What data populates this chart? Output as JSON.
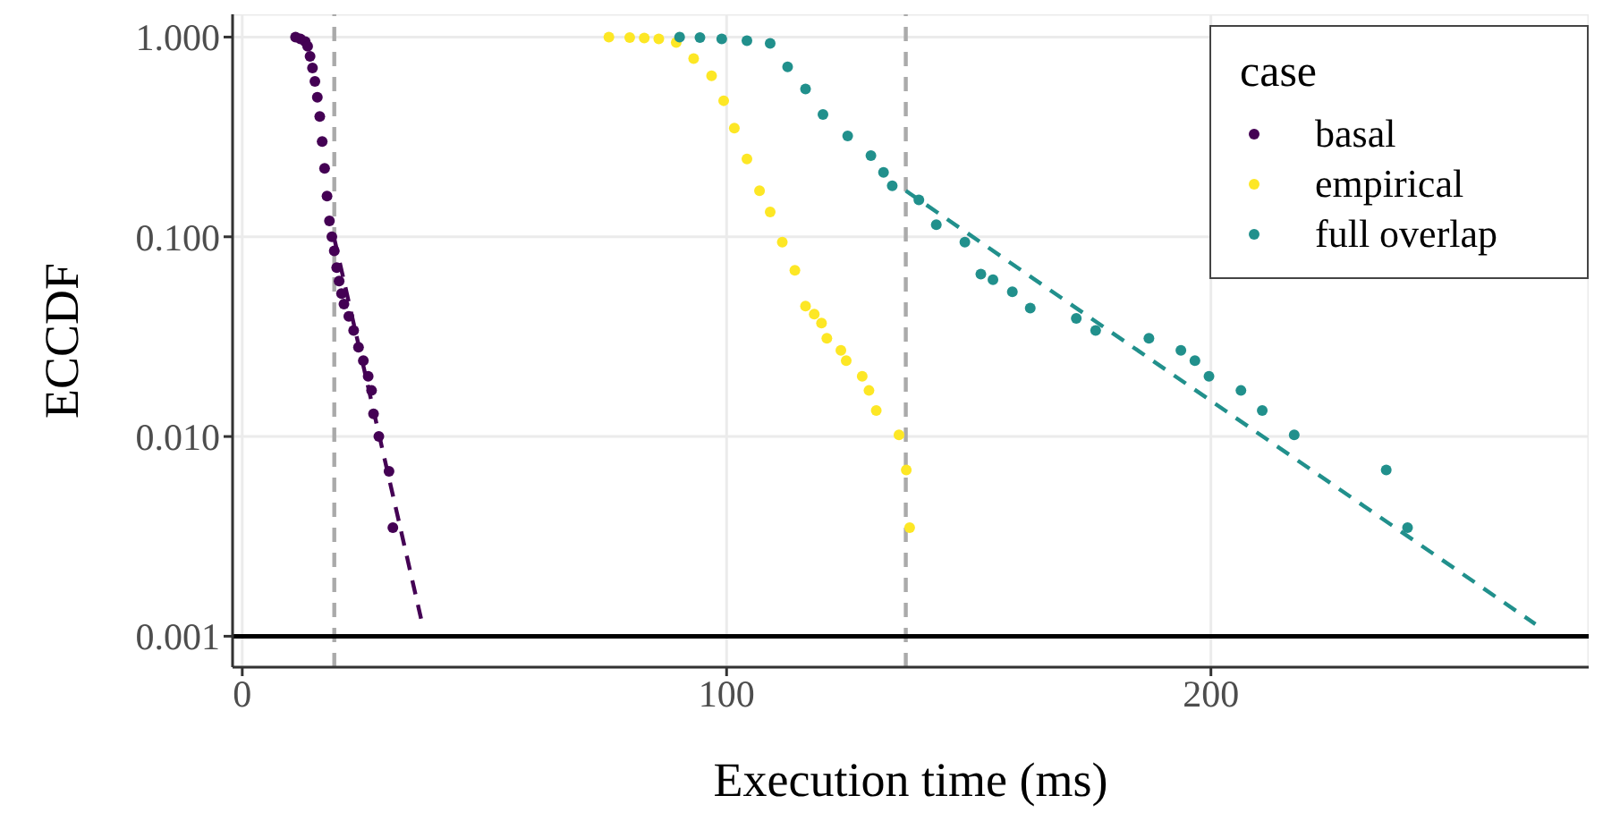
{
  "chart_data": {
    "type": "scatter",
    "xlabel": "Execution time (ms)",
    "ylabel": "ECCDF",
    "legend_title": "case",
    "xlim": [
      -2,
      278
    ],
    "xticks": [
      0,
      100,
      200
    ],
    "ylim": [
      0.0007,
      1.3
    ],
    "yticks": [
      {
        "value": 0.001,
        "label": "0.001"
      },
      {
        "value": 0.01,
        "label": "0.010"
      },
      {
        "value": 0.1,
        "label": "0.100"
      },
      {
        "value": 1,
        "label": "1.000"
      }
    ],
    "log": "y",
    "grid": true,
    "legend": "top right",
    "marker": "circle",
    "series": [
      {
        "name": "basal",
        "color": "#440154",
        "x": [
          11,
          12,
          13,
          13.5,
          14,
          14.5,
          15,
          15.5,
          16,
          16.5,
          17,
          17.5,
          18,
          18.5,
          19,
          19.5,
          20,
          20.5,
          21,
          22,
          23,
          24,
          25,
          26,
          26.7,
          27.1,
          28.2,
          30.3,
          31.1
        ],
        "values": [
          1.0,
          0.98,
          0.95,
          0.9,
          0.8,
          0.7,
          0.6,
          0.5,
          0.4,
          0.3,
          0.22,
          0.16,
          0.12,
          0.1,
          0.085,
          0.07,
          0.06,
          0.052,
          0.046,
          0.04,
          0.034,
          0.028,
          0.024,
          0.02,
          0.017,
          0.013,
          0.01,
          0.0067,
          0.0035
        ]
      },
      {
        "name": "empirical",
        "color": "#fde725",
        "x": [
          75.7,
          80,
          83,
          86,
          89.6,
          93.2,
          96.9,
          99.4,
          101.6,
          104.2,
          106.8,
          109,
          111.5,
          114.1,
          116.3,
          118.1,
          119.6,
          120.7,
          123.6,
          124.7,
          128,
          129.4,
          130.9,
          135.6,
          137.1,
          137.8
        ],
        "values": [
          1.0,
          0.995,
          0.99,
          0.98,
          0.94,
          0.78,
          0.64,
          0.48,
          0.35,
          0.245,
          0.17,
          0.133,
          0.094,
          0.068,
          0.045,
          0.041,
          0.037,
          0.031,
          0.027,
          0.024,
          0.02,
          0.017,
          0.0135,
          0.0102,
          0.0068,
          0.0035
        ]
      },
      {
        "name": "full overlap",
        "color": "#21908c",
        "x": [
          90.3,
          94.5,
          99,
          104.2,
          109,
          112.6,
          116.3,
          119.9,
          125,
          129.8,
          132.4,
          134.2,
          139.7,
          143.3,
          149.2,
          152.5,
          155,
          159,
          162.7,
          172.2,
          176.2,
          187.2,
          193.8,
          196.7,
          199.6,
          206.2,
          210.6,
          217.2,
          236.2,
          240.6
        ],
        "values": [
          1.0,
          0.995,
          0.98,
          0.96,
          0.93,
          0.71,
          0.55,
          0.41,
          0.32,
          0.255,
          0.21,
          0.18,
          0.153,
          0.115,
          0.094,
          0.065,
          0.061,
          0.053,
          0.044,
          0.039,
          0.034,
          0.031,
          0.027,
          0.024,
          0.02,
          0.017,
          0.0135,
          0.0102,
          0.0068,
          0.0035
        ]
      },
      {
        "type": "line",
        "color": "#440154",
        "line_style": "dashed",
        "marker": "none",
        "x": [
          19,
          37
        ],
        "values": [
          0.098,
          0.0012
        ]
      },
      {
        "type": "line",
        "color": "#21908c",
        "line_style": "dashed",
        "marker": "none",
        "x": [
          137,
          267
        ],
        "values": [
          0.17,
          0.00115
        ]
      }
    ],
    "ref_lines": [
      {
        "axis": "x",
        "value": 19,
        "color": "#aaaaaa",
        "line_style": "dashed"
      },
      {
        "axis": "x",
        "value": 137,
        "color": "#aaaaaa",
        "line_style": "dashed"
      },
      {
        "axis": "y",
        "value": 0.001,
        "color": "#000000",
        "line_style": "solid"
      }
    ]
  }
}
